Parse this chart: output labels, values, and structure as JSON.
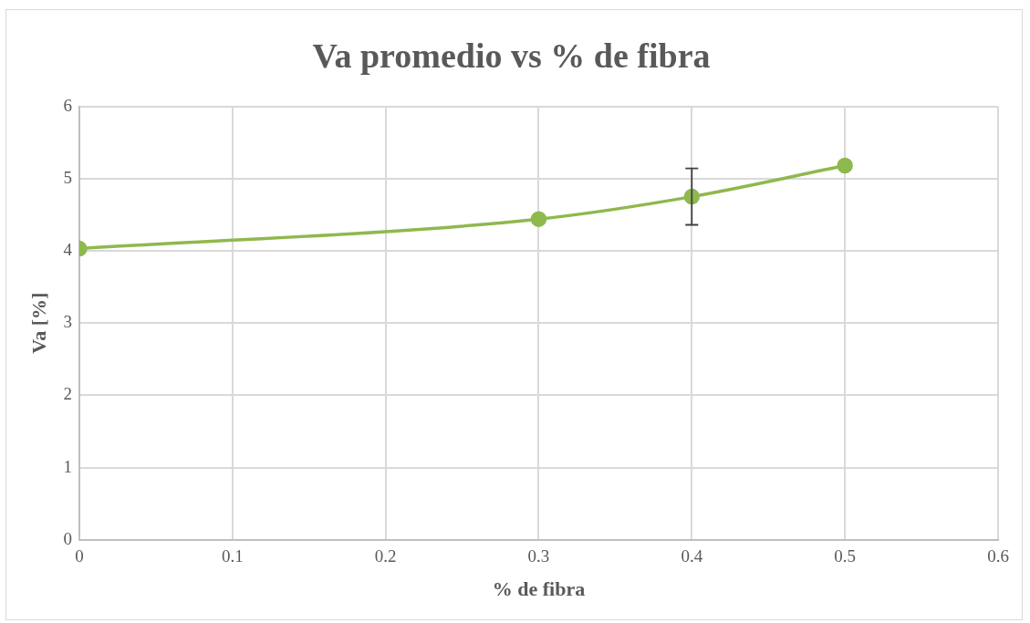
{
  "chart_data": {
    "type": "line",
    "title": "Va promedio vs % de fibra",
    "xlabel": "% de fibra",
    "ylabel": "Va [%]",
    "x": [
      0,
      0.3,
      0.4,
      0.5
    ],
    "series": [
      {
        "color": "#8fb84e",
        "values": [
          4.03,
          4.44,
          4.75,
          5.18
        ],
        "errors": [
          null,
          null,
          0.39,
          null
        ]
      }
    ],
    "xlim": [
      0,
      0.6
    ],
    "xticks": [
      0,
      0.1,
      0.2,
      0.3,
      0.4,
      0.5,
      0.6
    ],
    "ylim": [
      0,
      6
    ],
    "yticks": [
      0,
      1,
      2,
      3,
      4,
      5,
      6
    ],
    "grid": true,
    "legend": false,
    "marker": "circle",
    "line_style": "solid"
  }
}
